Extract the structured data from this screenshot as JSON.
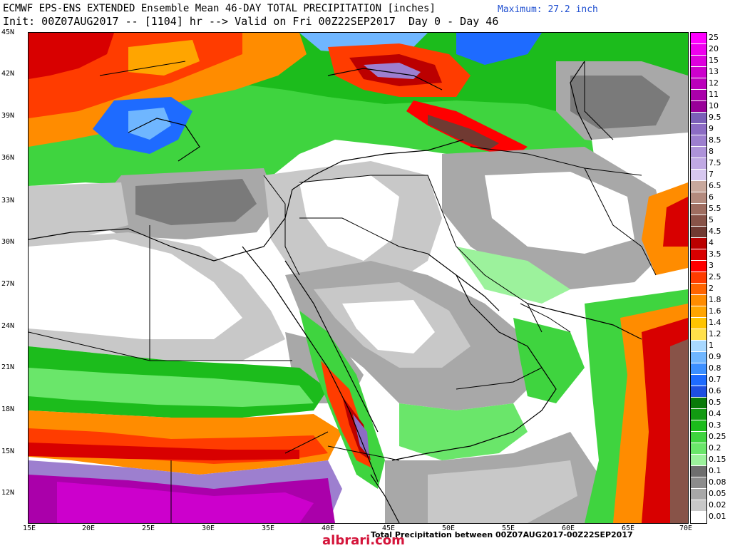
{
  "header": {
    "line1": "ECMWF EPS-ENS EXTENDED Ensemble Mean 46-DAY TOTAL PRECIPITATION [inches]",
    "line2": "Init: 00Z07AUG2017 -- [1104] hr --> Valid on Fri 00Z22SEP2017  Day 0 - Day 46",
    "maximum": "Maximum: 27.2 inch"
  },
  "axes": {
    "lat_labels": [
      "45N",
      "42N",
      "39N",
      "36N",
      "33N",
      "30N",
      "27N",
      "24N",
      "21N",
      "18N",
      "15N",
      "12N"
    ],
    "lon_labels": [
      "15E",
      "20E",
      "25E",
      "30E",
      "35E",
      "40E",
      "45E",
      "50E",
      "55E",
      "60E",
      "65E",
      "70E"
    ]
  },
  "footer": "Total Precipitation between 00Z07AUG2017-00Z22SEP2017",
  "watermark": "albrari.com",
  "legend": {
    "title": "",
    "levels": [
      {
        "label": "25",
        "color": "#ff00ff"
      },
      {
        "label": "20",
        "color": "#ee00ee"
      },
      {
        "label": "15",
        "color": "#dd00dd"
      },
      {
        "label": "13",
        "color": "#cc00cc"
      },
      {
        "label": "12",
        "color": "#bb00bb"
      },
      {
        "label": "11",
        "color": "#aa00aa"
      },
      {
        "label": "10",
        "color": "#990099"
      },
      {
        "label": "9.5",
        "color": "#7b5fb8"
      },
      {
        "label": "9",
        "color": "#8c6cc4"
      },
      {
        "label": "8.5",
        "color": "#9d7fcf"
      },
      {
        "label": "8",
        "color": "#ae93d9"
      },
      {
        "label": "7.5",
        "color": "#c0a9e3"
      },
      {
        "label": "7",
        "color": "#d7c8ef"
      },
      {
        "label": "6.5",
        "color": "#c8a89c"
      },
      {
        "label": "6",
        "color": "#b38a7d"
      },
      {
        "label": "5.5",
        "color": "#9e6d60"
      },
      {
        "label": "5",
        "color": "#885348"
      },
      {
        "label": "4.5",
        "color": "#703a32"
      },
      {
        "label": "4",
        "color": "#bb0000"
      },
      {
        "label": "3.5",
        "color": "#d80000"
      },
      {
        "label": "3",
        "color": "#ff0000"
      },
      {
        "label": "2.5",
        "color": "#ff3c00"
      },
      {
        "label": "2",
        "color": "#ff6400"
      },
      {
        "label": "1.8",
        "color": "#ff8c00"
      },
      {
        "label": "1.6",
        "color": "#ffa500"
      },
      {
        "label": "1.4",
        "color": "#ffc400"
      },
      {
        "label": "1.2",
        "color": "#ffe04a"
      },
      {
        "label": "1",
        "color": "#a8d8ff"
      },
      {
        "label": "0.9",
        "color": "#6fb6ff"
      },
      {
        "label": "0.8",
        "color": "#3c8fff"
      },
      {
        "label": "0.7",
        "color": "#1e6bff"
      },
      {
        "label": "0.6",
        "color": "#1e4fe0"
      },
      {
        "label": "0.5",
        "color": "#0a7a0a"
      },
      {
        "label": "0.4",
        "color": "#129a12"
      },
      {
        "label": "0.3",
        "color": "#1cbc1c"
      },
      {
        "label": "0.25",
        "color": "#3fd43f"
      },
      {
        "label": "0.2",
        "color": "#6ae66a"
      },
      {
        "label": "0.15",
        "color": "#9cf29c"
      },
      {
        "label": "0.1",
        "color": "#6e6e6e"
      },
      {
        "label": "0.08",
        "color": "#8c8c8c"
      },
      {
        "label": "0.05",
        "color": "#a8a8a8"
      },
      {
        "label": "0.02",
        "color": "#c8c8c8"
      },
      {
        "label": "0.01",
        "color": "#ffffff"
      }
    ]
  },
  "colors": {
    "dry_white": "#ffffff",
    "light_grey": "#c8c8c8",
    "mid_grey": "#a8a8a8",
    "dark_grey": "#7a7a7a",
    "light_green": "#9cf29c",
    "green": "#3fd43f",
    "dark_green": "#129a12",
    "blue": "#1e6bff",
    "yellow": "#ffe04a",
    "orange": "#ff8c00",
    "red": "#ff2000",
    "dark_red": "#bb0000",
    "brown": "#885348",
    "lavender": "#c0a9e3",
    "purple": "#aa00aa",
    "magenta": "#cc00cc",
    "max_text": "#1f4fd0",
    "watermark": "#d4143a"
  }
}
